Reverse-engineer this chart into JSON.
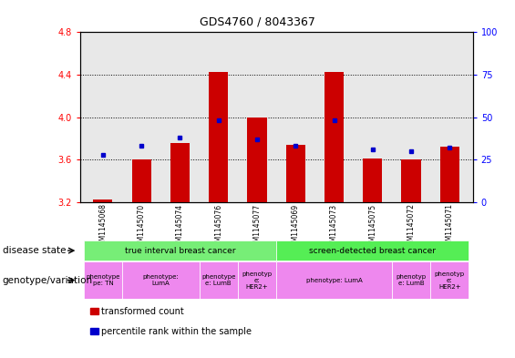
{
  "title": "GDS4760 / 8043367",
  "samples": [
    "GSM1145068",
    "GSM1145070",
    "GSM1145074",
    "GSM1145076",
    "GSM1145077",
    "GSM1145069",
    "GSM1145073",
    "GSM1145075",
    "GSM1145072",
    "GSM1145071"
  ],
  "bar_values": [
    3.23,
    3.6,
    3.76,
    4.43,
    4.0,
    3.74,
    4.43,
    3.61,
    3.6,
    3.72
  ],
  "bar_base": 3.2,
  "dot_values": [
    28,
    33,
    38,
    48,
    37,
    33,
    48,
    31,
    30,
    32
  ],
  "ylim_left": [
    3.2,
    4.8
  ],
  "ylim_right": [
    0,
    100
  ],
  "yticks_left": [
    3.2,
    3.6,
    4.0,
    4.4,
    4.8
  ],
  "yticks_right": [
    0,
    25,
    50,
    75,
    100
  ],
  "bar_color": "#cc0000",
  "dot_color": "#0000cc",
  "plot_bg": "#e8e8e8",
  "disease_groups": [
    {
      "text": "true interval breast cancer",
      "start": 0,
      "end": 4,
      "color": "#77ee77"
    },
    {
      "text": "screen-detected breast cancer",
      "start": 5,
      "end": 9,
      "color": "#55ee55"
    }
  ],
  "geno_groups": [
    {
      "text": "phenotype\npe: TN",
      "start": 0,
      "end": 0,
      "color": "#ee88ee"
    },
    {
      "text": "phenotype:\nLumA",
      "start": 1,
      "end": 2,
      "color": "#ee88ee"
    },
    {
      "text": "phenotype\ne: LumB",
      "start": 3,
      "end": 3,
      "color": "#ee88ee"
    },
    {
      "text": "phenotyp\ne:\nHER2+",
      "start": 4,
      "end": 4,
      "color": "#ee88ee"
    },
    {
      "text": "phenotype: LumA",
      "start": 5,
      "end": 7,
      "color": "#ee88ee"
    },
    {
      "text": "phenotyp\ne: LumB",
      "start": 8,
      "end": 8,
      "color": "#ee88ee"
    },
    {
      "text": "phenotyp\ne:\nHER2+",
      "start": 9,
      "end": 9,
      "color": "#ee88ee"
    }
  ],
  "legend": [
    {
      "color": "#cc0000",
      "label": "transformed count"
    },
    {
      "color": "#0000cc",
      "label": "percentile rank within the sample"
    }
  ],
  "disease_label": "disease state",
  "geno_label": "genotype/variation"
}
